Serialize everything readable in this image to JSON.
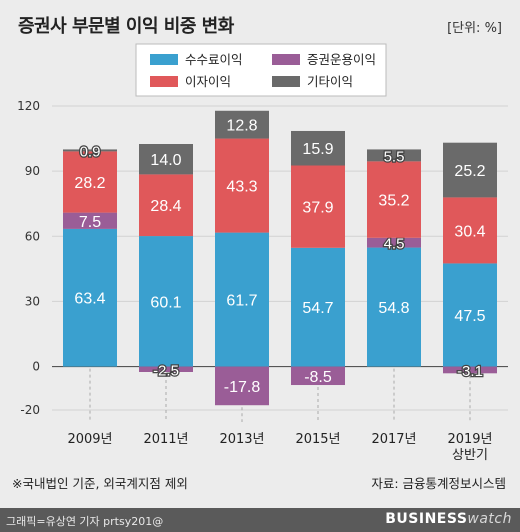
{
  "header": {
    "title": "증권사 부문별 이익 비중 변화",
    "unit": "[단위: %]"
  },
  "footnote": "※국내법인 기준, 외국계지점 제외",
  "source": "자료: 금융통계정보시스템",
  "footer": {
    "credit": "그래픽=유상연 기자 prtsy201@",
    "brand_1": "BUSINESS",
    "brand_2": "watch"
  },
  "colors": {
    "commission": "#3aa0cf",
    "interest": "#e0585a",
    "asset_mgmt": "#9a5d97",
    "other": "#6a6a6a",
    "background": "#ececec"
  },
  "chart_data": {
    "type": "bar",
    "stacked": true,
    "categories": [
      "2009년",
      "2011년",
      "2013년",
      "2015년",
      "2017년",
      "2019년\n상반기"
    ],
    "series": [
      {
        "name": "수수료이익",
        "values": [
          63.4,
          60.1,
          61.7,
          54.7,
          54.8,
          47.5
        ]
      },
      {
        "name": "증권운용이익",
        "values": [
          7.5,
          -2.5,
          -17.8,
          -8.5,
          4.5,
          -3.1
        ]
      },
      {
        "name": "이자이익",
        "values": [
          28.2,
          28.4,
          43.3,
          37.9,
          35.2,
          30.4
        ]
      },
      {
        "name": "기타이익",
        "values": [
          0.9,
          14.0,
          12.8,
          15.9,
          5.5,
          25.2
        ]
      }
    ],
    "data_labels": [
      [
        "63.4",
        "60.1",
        "61.7",
        "54.7",
        "54.8",
        "47.5"
      ],
      [
        "7.5",
        "-2.5",
        "-17.8",
        "-8.5",
        "4.5",
        "-3.1"
      ],
      [
        "28.2",
        "28.4",
        "43.3",
        "37.9",
        "35.2",
        "30.4"
      ],
      [
        "0.9",
        "14.0",
        "12.8",
        "15.9",
        "5.5",
        "25.2"
      ]
    ],
    "yticks": [
      "120",
      "90",
      "60",
      "30",
      "0",
      "-20"
    ],
    "ytick_values": [
      120,
      90,
      60,
      30,
      0,
      -20
    ],
    "ylim": [
      -20,
      120
    ],
    "grid": true,
    "legend": {
      "placement": "top-center",
      "order": [
        "수수료이익",
        "증권운용이익",
        "이자이익",
        "기타이익"
      ]
    }
  }
}
